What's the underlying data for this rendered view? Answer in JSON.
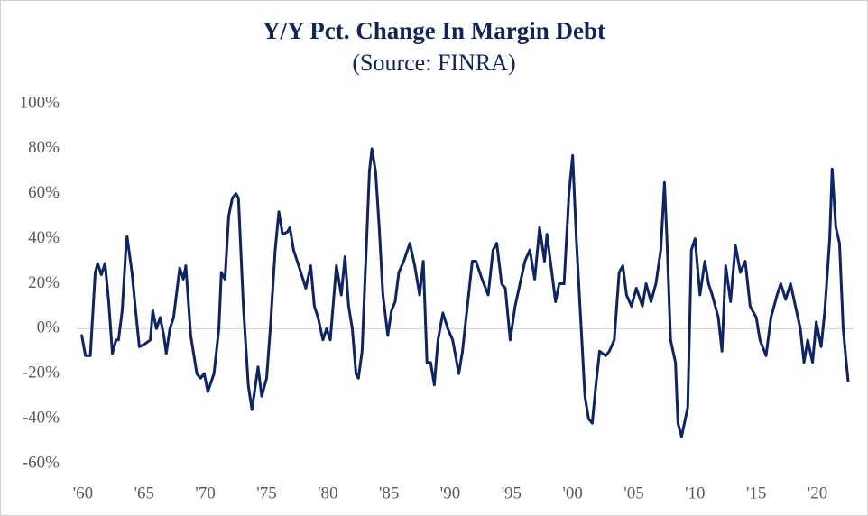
{
  "chart_data": {
    "type": "line",
    "title": "Y/Y Pct. Change In Margin Debt",
    "subtitle": "(Source: FINRA)",
    "x": [
      1959.9,
      1960.2,
      1960.6,
      1961.0,
      1961.2,
      1961.5,
      1961.8,
      1962.1,
      1962.4,
      1962.7,
      1962.9,
      1963.2,
      1963.5,
      1963.6,
      1964.0,
      1964.3,
      1964.6,
      1965.0,
      1965.5,
      1965.7,
      1966.0,
      1966.3,
      1966.6,
      1966.8,
      1967.1,
      1967.4,
      1967.9,
      1968.2,
      1968.4,
      1968.8,
      1969.3,
      1969.6,
      1969.9,
      1970.2,
      1970.7,
      1971.1,
      1971.3,
      1971.6,
      1971.9,
      1972.2,
      1972.5,
      1972.7,
      1973.1,
      1973.5,
      1973.8,
      1974.3,
      1974.6,
      1975.0,
      1975.3,
      1975.7,
      1976.0,
      1976.3,
      1976.7,
      1976.9,
      1977.2,
      1977.8,
      1978.2,
      1978.6,
      1978.9,
      1979.2,
      1979.6,
      1979.9,
      1980.2,
      1980.7,
      1981.1,
      1981.4,
      1981.7,
      1982.0,
      1982.3,
      1982.5,
      1982.8,
      1983.1,
      1983.4,
      1983.6,
      1983.9,
      1984.2,
      1984.5,
      1984.9,
      1985.2,
      1985.5,
      1985.8,
      1986.2,
      1986.7,
      1987.1,
      1987.5,
      1987.8,
      1988.1,
      1988.4,
      1988.7,
      1989.0,
      1989.4,
      1989.8,
      1990.2,
      1990.7,
      1991.0,
      1991.4,
      1991.8,
      1992.1,
      1992.6,
      1993.1,
      1993.5,
      1993.8,
      1994.2,
      1994.5,
      1994.9,
      1995.3,
      1995.7,
      1996.1,
      1996.5,
      1996.9,
      1997.3,
      1997.7,
      1997.9,
      1998.3,
      1998.6,
      1998.9,
      1999.3,
      1999.7,
      2000.0,
      2000.3,
      2000.7,
      2001.0,
      2001.3,
      2001.6,
      2001.9,
      2002.2,
      2002.7,
      2003.0,
      2003.4,
      2003.8,
      2004.1,
      2004.4,
      2004.8,
      2005.2,
      2005.7,
      2006.0,
      2006.4,
      2006.8,
      2007.2,
      2007.5,
      2007.7,
      2008.0,
      2008.4,
      2008.6,
      2008.9,
      2009.4,
      2009.7,
      2010.0,
      2010.4,
      2010.8,
      2011.1,
      2011.4,
      2011.9,
      2012.2,
      2012.5,
      2012.9,
      2013.3,
      2013.7,
      2014.1,
      2014.5,
      2015.0,
      2015.3,
      2015.8,
      2016.2,
      2016.7,
      2017.0,
      2017.4,
      2017.8,
      2018.2,
      2018.6,
      2018.9,
      2019.2,
      2019.6,
      2019.9,
      2020.3,
      2020.6,
      2021.0,
      2021.2,
      2021.5,
      2021.8,
      2022.1,
      2022.3,
      2022.5
    ],
    "series": [
      {
        "name": "Y/Y Pct. Change In Margin Debt",
        "color": "#0f2463",
        "values": [
          -3,
          -12,
          -12,
          25,
          29,
          24,
          29,
          12,
          -11,
          -5,
          -5,
          8,
          35,
          41,
          25,
          8,
          -8,
          -7,
          -5,
          8,
          0,
          5,
          -3,
          -11,
          0,
          5,
          27,
          22,
          28,
          -3,
          -20,
          -22,
          -20,
          -28,
          -20,
          0,
          25,
          22,
          50,
          58,
          60,
          58,
          10,
          -25,
          -36,
          -17,
          -30,
          -22,
          0,
          35,
          52,
          42,
          43,
          45,
          35,
          25,
          18,
          28,
          10,
          5,
          -5,
          0,
          -5,
          28,
          15,
          32,
          10,
          0,
          -20,
          -22,
          -10,
          30,
          70,
          80,
          70,
          45,
          15,
          -3,
          8,
          12,
          25,
          30,
          38,
          28,
          15,
          30,
          -15,
          -15,
          -25,
          -5,
          7,
          0,
          -5,
          -20,
          -10,
          10,
          30,
          30,
          22,
          15,
          35,
          38,
          20,
          18,
          -5,
          10,
          20,
          30,
          35,
          22,
          45,
          30,
          42,
          25,
          12,
          20,
          20,
          60,
          77,
          40,
          0,
          -30,
          -40,
          -42,
          -25,
          -10,
          -12,
          -10,
          -5,
          25,
          28,
          15,
          10,
          18,
          10,
          20,
          12,
          20,
          35,
          65,
          40,
          -5,
          -15,
          -42,
          -48,
          -35,
          35,
          40,
          15,
          30,
          20,
          15,
          5,
          -10,
          28,
          12,
          37,
          25,
          30,
          10,
          5,
          -5,
          -12,
          5,
          15,
          20,
          13,
          20,
          10,
          0,
          -15,
          -5,
          -15,
          3,
          -8,
          8,
          40,
          71,
          45,
          38,
          0,
          -12,
          -23
        ]
      }
    ],
    "xlim": [
      1959.5,
      2023
    ],
    "xticks": [
      {
        "value": 1960,
        "label": "'60"
      },
      {
        "value": 1965,
        "label": "'65"
      },
      {
        "value": 1970,
        "label": "'70"
      },
      {
        "value": 1975,
        "label": "'75"
      },
      {
        "value": 1980,
        "label": "'80"
      },
      {
        "value": 1985,
        "label": "'85"
      },
      {
        "value": 1990,
        "label": "'90"
      },
      {
        "value": 1995,
        "label": "'95"
      },
      {
        "value": 2000,
        "label": "'00"
      },
      {
        "value": 2005,
        "label": "'05"
      },
      {
        "value": 2010,
        "label": "'10"
      },
      {
        "value": 2015,
        "label": "'15"
      },
      {
        "value": 2020,
        "label": "'20"
      }
    ],
    "ylim": [
      -60,
      100
    ],
    "yticks": [
      {
        "value": -60,
        "label": "-60%"
      },
      {
        "value": -40,
        "label": "-40%"
      },
      {
        "value": -20,
        "label": "-20%"
      },
      {
        "value": 0,
        "label": "0%"
      },
      {
        "value": 20,
        "label": "20%"
      },
      {
        "value": 40,
        "label": "40%"
      },
      {
        "value": 60,
        "label": "60%"
      },
      {
        "value": 80,
        "label": "80%"
      },
      {
        "value": 100,
        "label": "100%"
      }
    ],
    "zero_line": true
  }
}
